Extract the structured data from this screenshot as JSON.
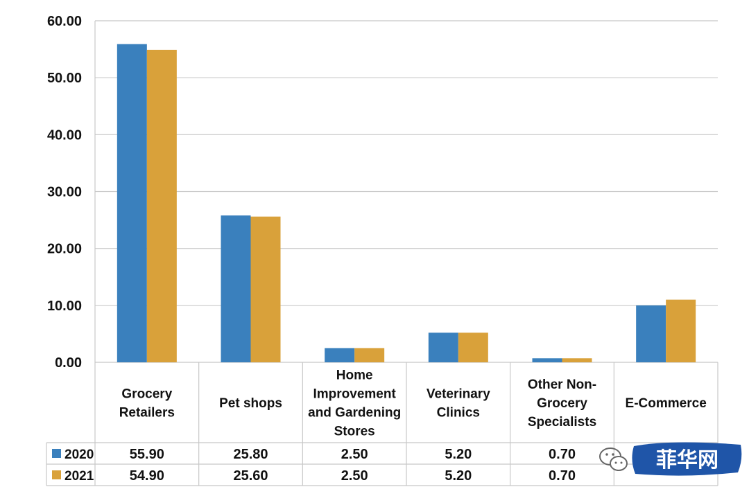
{
  "chart_data": {
    "type": "bar",
    "categories": [
      [
        "Grocery",
        "Retailers"
      ],
      [
        "Pet shops"
      ],
      [
        "Home",
        "Improvement",
        "and Gardening",
        "Stores"
      ],
      [
        "Veterinary",
        "Clinics"
      ],
      [
        "Other Non-",
        "Grocery",
        "Specialists"
      ],
      [
        "E-Commerce"
      ]
    ],
    "series": [
      {
        "name": "2020",
        "color": "#3a80bd",
        "values": [
          55.9,
          25.8,
          2.5,
          5.2,
          0.7,
          10.0
        ],
        "table_values": [
          "55.90",
          "25.80",
          "2.50",
          "5.20",
          "0.70",
          ""
        ]
      },
      {
        "name": "2021",
        "color": "#d9a13a",
        "values": [
          54.9,
          25.6,
          2.5,
          5.2,
          0.7,
          11.0
        ],
        "table_values": [
          "54.90",
          "25.60",
          "2.50",
          "5.20",
          "0.70",
          ""
        ]
      }
    ],
    "yticks": [
      "0.00",
      "10.00",
      "20.00",
      "30.00",
      "40.00",
      "50.00",
      "60.00"
    ],
    "ylim": [
      0,
      60
    ],
    "grid": true,
    "legend": "data-table"
  },
  "watermark": {
    "text": "菲华网"
  }
}
